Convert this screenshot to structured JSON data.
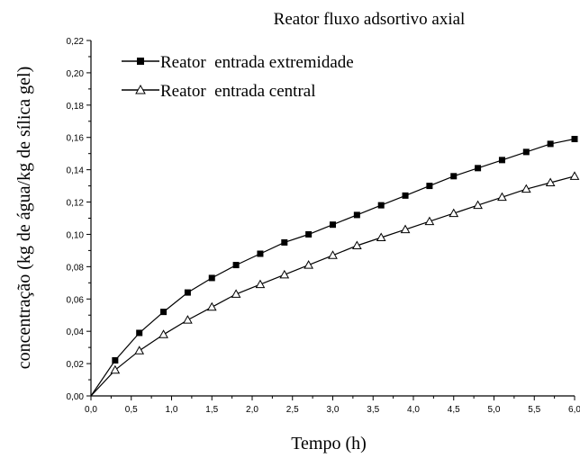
{
  "chart_data": {
    "type": "line",
    "title": "Reator fluxo adsortivo axial",
    "xlabel": "Tempo (h)",
    "ylabel": "concentração (kg de água/kg de sílica gel)",
    "xlim": [
      0,
      6
    ],
    "ylim": [
      0,
      0.22
    ],
    "x_ticks": [
      "0,0",
      "0,5",
      "1,0",
      "1,5",
      "2,0",
      "2,5",
      "3,0",
      "3,5",
      "4,0",
      "4,5",
      "5,0",
      "5,5",
      "6,0"
    ],
    "y_ticks": [
      "0,00",
      "0,02",
      "0,04",
      "0,06",
      "0,08",
      "0,10",
      "0,12",
      "0,14",
      "0,16",
      "0,18",
      "0,20",
      "0,22"
    ],
    "grid": false,
    "legend_position": "top-left",
    "x": [
      0.0,
      0.3,
      0.6,
      0.9,
      1.2,
      1.5,
      1.8,
      2.1,
      2.4,
      2.7,
      3.0,
      3.3,
      3.6,
      3.9,
      4.2,
      4.5,
      4.8,
      5.1,
      5.4,
      5.7,
      6.0
    ],
    "series": [
      {
        "name": "Reator  entrada extremidade",
        "marker": "filled-square",
        "color": "#000000",
        "values": [
          0.0,
          0.022,
          0.039,
          0.052,
          0.064,
          0.073,
          0.081,
          0.088,
          0.095,
          0.1,
          0.106,
          0.112,
          0.118,
          0.124,
          0.13,
          0.136,
          0.141,
          0.146,
          0.151,
          0.156,
          0.159
        ]
      },
      {
        "name": "Reator  entrada central",
        "marker": "open-triangle",
        "color": "#000000",
        "values": [
          0.0,
          0.016,
          0.028,
          0.038,
          0.047,
          0.055,
          0.063,
          0.069,
          0.075,
          0.081,
          0.087,
          0.093,
          0.098,
          0.103,
          0.108,
          0.113,
          0.118,
          0.123,
          0.128,
          0.132,
          0.136
        ]
      }
    ]
  }
}
